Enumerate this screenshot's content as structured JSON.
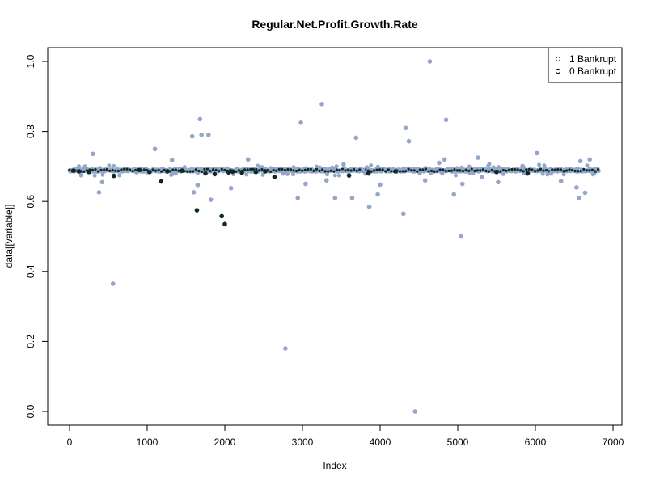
{
  "chart_data": {
    "type": "scatter",
    "title": "Regular.Net.Profit.Growth.Rate",
    "xlabel": "Index",
    "ylabel": "data[[variable]]",
    "xlim": [
      0,
      7000
    ],
    "ylim": [
      0,
      1.0
    ],
    "xticks": [
      "0",
      "1000",
      "2000",
      "3000",
      "4000",
      "5000",
      "6000",
      "7000"
    ],
    "yticks": [
      "0.0",
      "0.2",
      "0.4",
      "0.6",
      "0.8",
      "1.0"
    ],
    "grid": false,
    "legend": {
      "placement": "top-right",
      "entries": [
        {
          "marker": "o",
          "label": "1 Bankrupt"
        },
        {
          "marker": "o",
          "label": "0 Bankrupt"
        }
      ]
    },
    "colors": {
      "Bankrupt_0": "#94a6c9",
      "Bankrupt_1": "#0b2a24"
    },
    "band": {
      "from": 0,
      "to": 6819,
      "center": 0.689,
      "spread": 0.004
    },
    "series": [
      {
        "name": "0 Bankrupt",
        "x": [
          300,
          380,
          420,
          560,
          1100,
          1320,
          1580,
          1600,
          1680,
          1700,
          1790,
          1820,
          1650,
          2080,
          2300,
          2940,
          2980,
          3040,
          3250,
          3310,
          3420,
          3530,
          3640,
          3690,
          3780,
          3860,
          3970,
          4000,
          4300,
          4330,
          4370,
          4450,
          4580,
          4640,
          4760,
          4830,
          4850,
          4950,
          5040,
          5060,
          5260,
          5310,
          5520,
          5840,
          6020,
          6200,
          6330,
          6530,
          6560,
          6580,
          6640,
          6700,
          2780,
          200,
          150
        ],
        "y": [
          0.736,
          0.626,
          0.655,
          0.365,
          0.75,
          0.718,
          0.786,
          0.626,
          0.835,
          0.79,
          0.79,
          0.605,
          0.647,
          0.638,
          0.72,
          0.61,
          0.825,
          0.65,
          0.878,
          0.66,
          0.61,
          0.706,
          0.61,
          0.782,
          0.69,
          0.585,
          0.62,
          0.648,
          0.565,
          0.81,
          0.772,
          0.0,
          0.66,
          1.0,
          0.71,
          0.72,
          0.833,
          0.62,
          0.5,
          0.65,
          0.725,
          0.67,
          0.655,
          0.7,
          0.738,
          0.68,
          0.658,
          0.64,
          0.61,
          0.715,
          0.625,
          0.72,
          0.18,
          0.7,
          0.675
        ]
      },
      {
        "name": "1 Bankrupt",
        "x": [
          50,
          120,
          250,
          570,
          900,
          1030,
          1180,
          1450,
          1640,
          1750,
          1870,
          1960,
          2000,
          2100,
          2220,
          2400,
          2520,
          2640,
          3600,
          3850,
          4200,
          5500,
          5900,
          1260,
          2050
        ],
        "y": [
          0.688,
          0.686,
          0.684,
          0.673,
          0.69,
          0.684,
          0.657,
          0.688,
          0.575,
          0.68,
          0.678,
          0.558,
          0.535,
          0.685,
          0.682,
          0.684,
          0.686,
          0.67,
          0.674,
          0.68,
          0.686,
          0.684,
          0.68,
          0.686,
          0.683
        ]
      }
    ]
  }
}
